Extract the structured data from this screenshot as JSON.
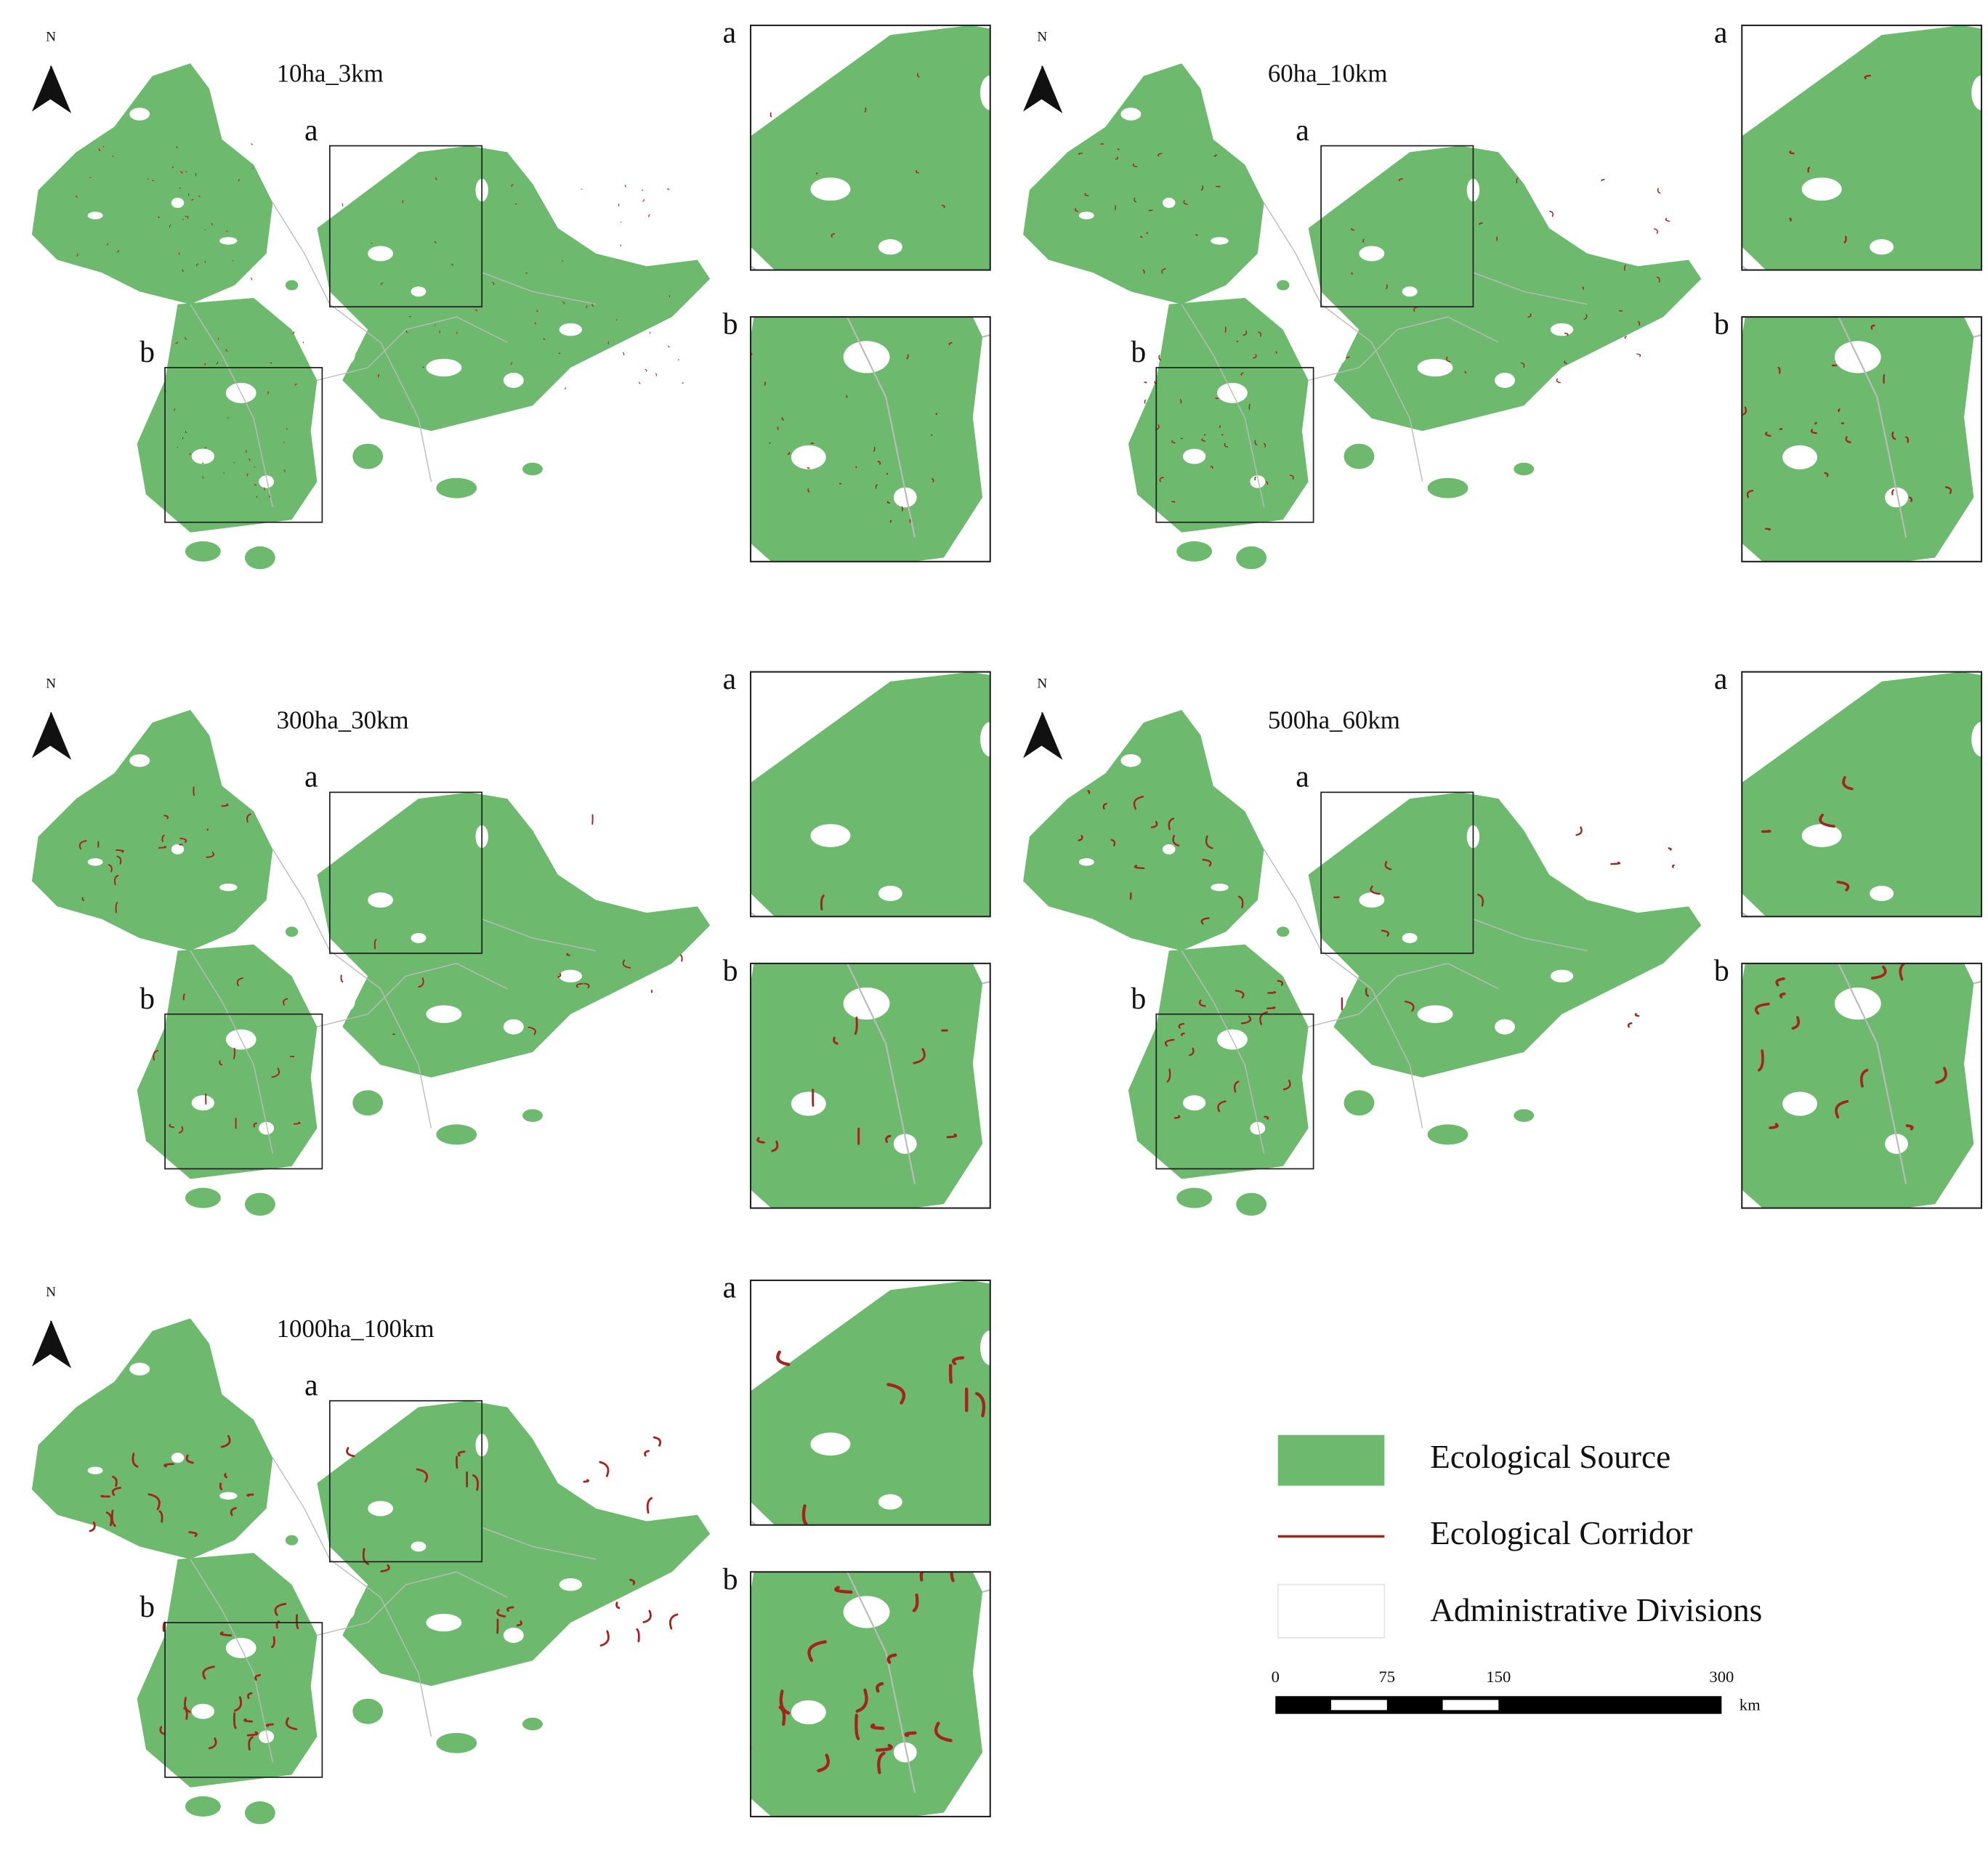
{
  "panels": [
    {
      "title": "10ha_3km",
      "north": "N",
      "zoom_labels": [
        "a",
        "b"
      ],
      "inset_labels": [
        "a",
        "b"
      ]
    },
    {
      "title": "60ha_10km",
      "north": "N",
      "zoom_labels": [
        "a",
        "b"
      ],
      "inset_labels": [
        "a",
        "b"
      ]
    },
    {
      "title": "300ha_30km",
      "north": "N",
      "zoom_labels": [
        "a",
        "b"
      ],
      "inset_labels": [
        "a",
        "b"
      ]
    },
    {
      "title": "500ha_60km",
      "north": "N",
      "zoom_labels": [
        "a",
        "b"
      ],
      "inset_labels": [
        "a",
        "b"
      ]
    },
    {
      "title": "1000ha_100km",
      "north": "N",
      "zoom_labels": [
        "a",
        "b"
      ],
      "inset_labels": [
        "a",
        "b"
      ]
    }
  ],
  "legend": {
    "items": [
      "Ecological Source",
      "Ecological Corridor",
      "Administrative Divisions"
    ]
  },
  "scale_bar": {
    "ticks": [
      0,
      75,
      150,
      300
    ],
    "unit": "km"
  }
}
